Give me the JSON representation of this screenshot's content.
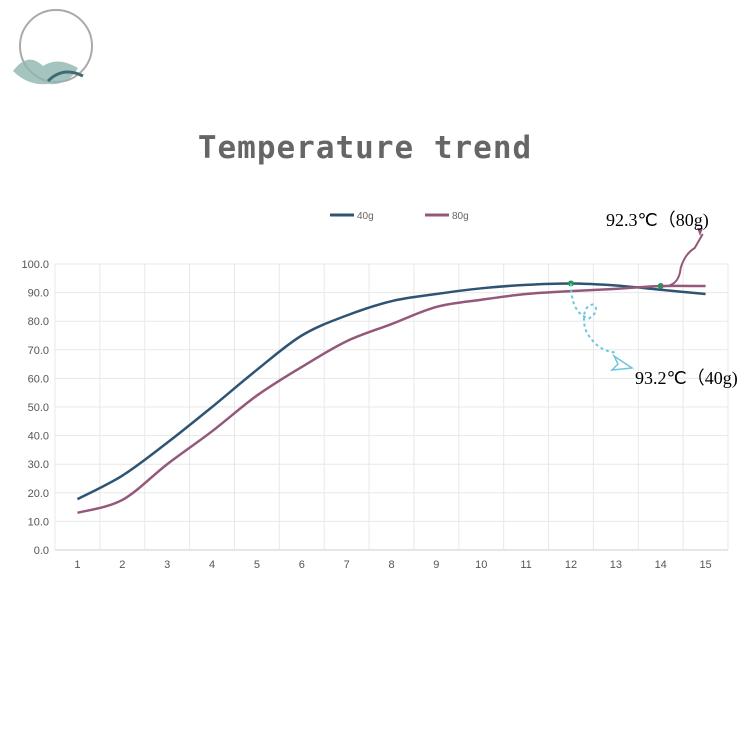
{
  "chart_data": {
    "type": "line",
    "title": "Temperature trend",
    "xlabel": "",
    "ylabel": "",
    "x": [
      1,
      2,
      3,
      4,
      5,
      6,
      7,
      8,
      9,
      10,
      11,
      12,
      13,
      14,
      15
    ],
    "ylim": [
      0,
      100
    ],
    "yticks": [
      "0.0",
      "10.0",
      "20.0",
      "30.0",
      "40.0",
      "50.0",
      "60.0",
      "70.0",
      "80.0",
      "90.0",
      "100.0"
    ],
    "grid": true,
    "legend_position": "top-center",
    "series": [
      {
        "name": "40g",
        "color": "#2f5473",
        "values": [
          17.8,
          26,
          37.5,
          50,
          63,
          75,
          82,
          87,
          89.5,
          91.5,
          92.7,
          93.2,
          92.5,
          91,
          89.5
        ]
      },
      {
        "name": "80g",
        "color": "#93587a",
        "values": [
          13,
          17.5,
          30,
          41.5,
          54,
          64,
          73,
          79,
          85,
          87.5,
          89.5,
          90.5,
          91.3,
          92.3,
          92.3
        ]
      }
    ],
    "annotations": [
      {
        "text": "92.3℃（80g)",
        "series": "80g",
        "x": 14,
        "y": 92.3,
        "color": "#93587a"
      },
      {
        "text": "93.2℃（40g)",
        "series": "40g",
        "x": 12,
        "y": 93.2,
        "color": "#6cc6de"
      }
    ]
  }
}
